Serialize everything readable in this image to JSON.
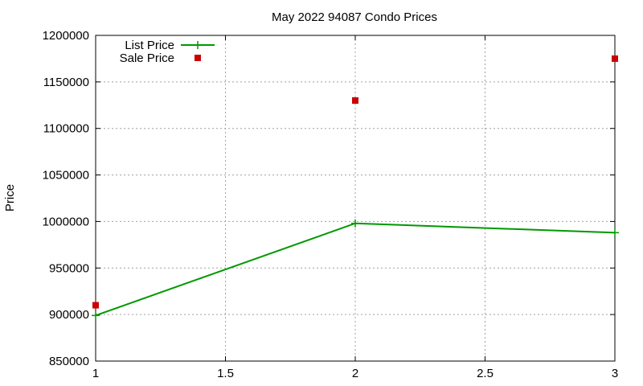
{
  "chart_data": {
    "type": "line",
    "title": "May 2022 94087 Condo Prices",
    "xlabel": "",
    "ylabel": "Price",
    "xlim": [
      1,
      3
    ],
    "ylim": [
      850000,
      1200000
    ],
    "xticks": [
      1,
      1.5,
      2,
      2.5,
      3
    ],
    "yticks": [
      850000,
      900000,
      950000,
      1000000,
      1050000,
      1100000,
      1150000,
      1200000
    ],
    "grid": true,
    "legend_position": "top-left",
    "series": [
      {
        "name": "List Price",
        "style": "line-with-plus-markers",
        "color": "#009900",
        "x": [
          1,
          2,
          3
        ],
        "y": [
          899000,
          998000,
          988000
        ]
      },
      {
        "name": "Sale Price",
        "style": "square-markers",
        "color": "#cc0000",
        "x": [
          1,
          2,
          3
        ],
        "y": [
          910000,
          1130000,
          1175000
        ]
      }
    ]
  }
}
